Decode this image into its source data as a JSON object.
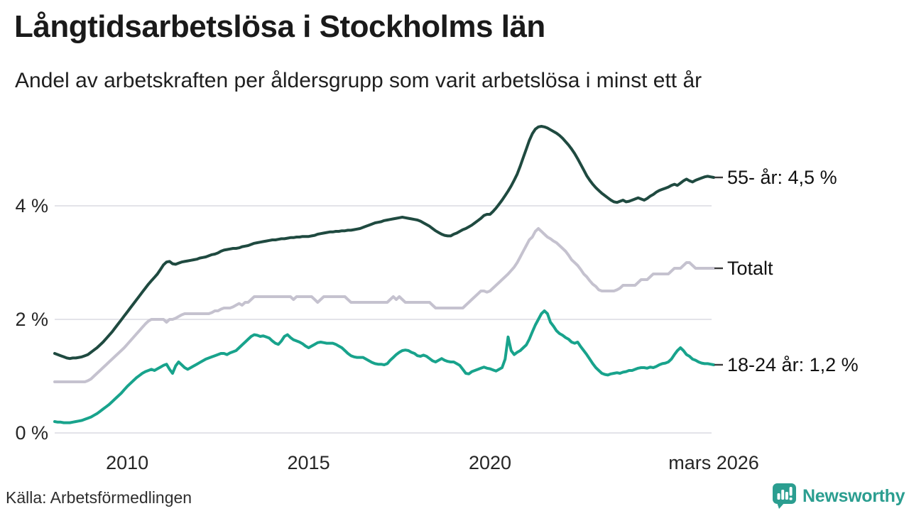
{
  "header": {
    "title": "Långtidsarbetslösa i Stockholms län",
    "subtitle": "Andel av arbetskraften per åldersgrupp som varit arbetslösa i minst ett år"
  },
  "footer": {
    "source": "Källa: Arbetsförmedlingen",
    "brand": "Newsworthy"
  },
  "colors": {
    "series_55": "#1f4a40",
    "series_total": "#c5c2cf",
    "series_young": "#18a38c",
    "gridline": "#e3e3e9",
    "connector": "#3c3c3c",
    "text": "#1a1a1a",
    "brand_teal": "#2b9e90"
  },
  "chart_data": {
    "type": "line",
    "title": "Långtidsarbetslösa i Stockholms län",
    "subtitle": "Andel av arbetskraften per åldersgrupp som varit arbetslösa i minst ett år",
    "source": "Källa: Arbetsförmedlingen",
    "x_unit": "month",
    "x_start": "2008-01",
    "x_end": "2026-03",
    "ylim": [
      0,
      5.6
    ],
    "grid": "horizontal",
    "legend_position": "right-end-labels",
    "yticks": [
      {
        "value": 0,
        "label": "0 %"
      },
      {
        "value": 2,
        "label": "2 %"
      },
      {
        "value": 4,
        "label": "4 %"
      }
    ],
    "xticks": [
      {
        "month_index": 24,
        "label": "2010"
      },
      {
        "month_index": 84,
        "label": "2015"
      },
      {
        "month_index": 144,
        "label": "2020"
      },
      {
        "month_index": 218,
        "label": "mars 2026"
      }
    ],
    "series": [
      {
        "name": "55- år",
        "end_label": "55- år: 4,5 %",
        "end_value": 4.5,
        "color": "#1f4a40",
        "values": [
          1.4,
          1.38,
          1.36,
          1.34,
          1.32,
          1.31,
          1.32,
          1.32,
          1.33,
          1.34,
          1.36,
          1.38,
          1.42,
          1.46,
          1.5,
          1.55,
          1.6,
          1.66,
          1.72,
          1.78,
          1.85,
          1.92,
          1.99,
          2.06,
          2.13,
          2.2,
          2.27,
          2.34,
          2.41,
          2.48,
          2.55,
          2.62,
          2.68,
          2.74,
          2.8,
          2.88,
          2.96,
          3.01,
          3.02,
          2.98,
          2.97,
          2.99,
          3.01,
          3.02,
          3.03,
          3.04,
          3.05,
          3.06,
          3.08,
          3.09,
          3.1,
          3.12,
          3.14,
          3.15,
          3.17,
          3.2,
          3.22,
          3.23,
          3.24,
          3.25,
          3.25,
          3.26,
          3.28,
          3.29,
          3.3,
          3.32,
          3.34,
          3.35,
          3.36,
          3.37,
          3.38,
          3.39,
          3.4,
          3.4,
          3.41,
          3.42,
          3.42,
          3.43,
          3.44,
          3.44,
          3.45,
          3.45,
          3.46,
          3.46,
          3.46,
          3.47,
          3.48,
          3.5,
          3.51,
          3.52,
          3.53,
          3.54,
          3.54,
          3.55,
          3.55,
          3.56,
          3.56,
          3.57,
          3.57,
          3.58,
          3.59,
          3.6,
          3.62,
          3.64,
          3.66,
          3.68,
          3.7,
          3.71,
          3.72,
          3.74,
          3.75,
          3.76,
          3.77,
          3.78,
          3.79,
          3.8,
          3.79,
          3.78,
          3.77,
          3.76,
          3.75,
          3.73,
          3.7,
          3.67,
          3.64,
          3.6,
          3.56,
          3.53,
          3.5,
          3.48,
          3.47,
          3.47,
          3.5,
          3.52,
          3.55,
          3.58,
          3.6,
          3.63,
          3.66,
          3.7,
          3.74,
          3.78,
          3.83,
          3.85,
          3.85,
          3.9,
          3.96,
          4.03,
          4.1,
          4.18,
          4.26,
          4.35,
          4.45,
          4.56,
          4.7,
          4.85,
          5.0,
          5.15,
          5.27,
          5.35,
          5.39,
          5.4,
          5.39,
          5.37,
          5.34,
          5.31,
          5.28,
          5.24,
          5.19,
          5.13,
          5.07,
          5.0,
          4.92,
          4.83,
          4.73,
          4.63,
          4.53,
          4.45,
          4.38,
          4.32,
          4.27,
          4.22,
          4.18,
          4.14,
          4.1,
          4.07,
          4.06,
          4.08,
          4.1,
          4.07,
          4.08,
          4.1,
          4.12,
          4.14,
          4.12,
          4.1,
          4.13,
          4.17,
          4.2,
          4.24,
          4.27,
          4.29,
          4.31,
          4.33,
          4.36,
          4.38,
          4.36,
          4.4,
          4.44,
          4.47,
          4.44,
          4.42,
          4.45,
          4.47,
          4.49,
          4.51,
          4.52,
          4.51,
          4.5
        ]
      },
      {
        "name": "Totalt",
        "end_label": "Totalt",
        "end_value": 2.9,
        "color": "#c5c2cf",
        "values": [
          0.9,
          0.9,
          0.9,
          0.9,
          0.9,
          0.9,
          0.9,
          0.9,
          0.9,
          0.9,
          0.9,
          0.92,
          0.95,
          1.0,
          1.05,
          1.1,
          1.15,
          1.2,
          1.25,
          1.3,
          1.35,
          1.4,
          1.45,
          1.5,
          1.56,
          1.62,
          1.68,
          1.74,
          1.8,
          1.86,
          1.92,
          1.97,
          2.0,
          2.0,
          2.0,
          2.0,
          2.0,
          1.95,
          2.0,
          2.0,
          2.02,
          2.05,
          2.08,
          2.1,
          2.1,
          2.1,
          2.1,
          2.1,
          2.1,
          2.1,
          2.1,
          2.1,
          2.12,
          2.15,
          2.15,
          2.18,
          2.2,
          2.2,
          2.2,
          2.22,
          2.25,
          2.28,
          2.25,
          2.3,
          2.3,
          2.35,
          2.4,
          2.4,
          2.4,
          2.4,
          2.4,
          2.4,
          2.4,
          2.4,
          2.4,
          2.4,
          2.4,
          2.4,
          2.4,
          2.35,
          2.4,
          2.4,
          2.4,
          2.4,
          2.4,
          2.4,
          2.35,
          2.3,
          2.35,
          2.4,
          2.4,
          2.4,
          2.4,
          2.4,
          2.4,
          2.4,
          2.4,
          2.35,
          2.3,
          2.3,
          2.3,
          2.3,
          2.3,
          2.3,
          2.3,
          2.3,
          2.3,
          2.3,
          2.3,
          2.3,
          2.3,
          2.35,
          2.4,
          2.35,
          2.4,
          2.35,
          2.3,
          2.3,
          2.3,
          2.3,
          2.3,
          2.3,
          2.3,
          2.3,
          2.3,
          2.25,
          2.2,
          2.2,
          2.2,
          2.2,
          2.2,
          2.2,
          2.2,
          2.2,
          2.2,
          2.2,
          2.25,
          2.3,
          2.35,
          2.4,
          2.45,
          2.5,
          2.5,
          2.48,
          2.5,
          2.55,
          2.6,
          2.65,
          2.7,
          2.75,
          2.8,
          2.86,
          2.92,
          3.0,
          3.1,
          3.2,
          3.3,
          3.4,
          3.45,
          3.55,
          3.6,
          3.55,
          3.5,
          3.45,
          3.42,
          3.38,
          3.35,
          3.3,
          3.25,
          3.2,
          3.13,
          3.05,
          3.0,
          2.95,
          2.88,
          2.8,
          2.75,
          2.68,
          2.62,
          2.58,
          2.52,
          2.5,
          2.5,
          2.5,
          2.5,
          2.5,
          2.52,
          2.55,
          2.6,
          2.6,
          2.6,
          2.6,
          2.6,
          2.65,
          2.7,
          2.7,
          2.7,
          2.75,
          2.8,
          2.8,
          2.8,
          2.8,
          2.8,
          2.8,
          2.85,
          2.9,
          2.9,
          2.9,
          2.95,
          3.0,
          3.0,
          2.95,
          2.9,
          2.9,
          2.9,
          2.9,
          2.9,
          2.9,
          2.9
        ]
      },
      {
        "name": "18-24 år",
        "end_label": "18-24 år: 1,2 %",
        "end_value": 1.2,
        "color": "#18a38c",
        "values": [
          0.2,
          0.19,
          0.19,
          0.18,
          0.18,
          0.18,
          0.19,
          0.2,
          0.21,
          0.22,
          0.24,
          0.26,
          0.28,
          0.31,
          0.34,
          0.38,
          0.42,
          0.46,
          0.5,
          0.55,
          0.6,
          0.65,
          0.7,
          0.76,
          0.82,
          0.87,
          0.92,
          0.97,
          1.01,
          1.05,
          1.08,
          1.1,
          1.12,
          1.1,
          1.13,
          1.16,
          1.19,
          1.21,
          1.12,
          1.05,
          1.18,
          1.25,
          1.2,
          1.15,
          1.12,
          1.15,
          1.18,
          1.21,
          1.24,
          1.27,
          1.3,
          1.32,
          1.34,
          1.36,
          1.38,
          1.4,
          1.4,
          1.38,
          1.41,
          1.43,
          1.45,
          1.5,
          1.55,
          1.6,
          1.65,
          1.7,
          1.73,
          1.72,
          1.7,
          1.71,
          1.69,
          1.67,
          1.62,
          1.58,
          1.56,
          1.62,
          1.7,
          1.73,
          1.68,
          1.64,
          1.62,
          1.6,
          1.57,
          1.53,
          1.5,
          1.53,
          1.56,
          1.59,
          1.6,
          1.59,
          1.58,
          1.58,
          1.58,
          1.56,
          1.53,
          1.5,
          1.45,
          1.4,
          1.36,
          1.34,
          1.33,
          1.33,
          1.33,
          1.3,
          1.27,
          1.24,
          1.22,
          1.21,
          1.21,
          1.2,
          1.22,
          1.28,
          1.33,
          1.38,
          1.42,
          1.45,
          1.46,
          1.45,
          1.42,
          1.4,
          1.36,
          1.35,
          1.37,
          1.35,
          1.31,
          1.27,
          1.25,
          1.28,
          1.31,
          1.28,
          1.26,
          1.25,
          1.25,
          1.22,
          1.19,
          1.12,
          1.05,
          1.04,
          1.08,
          1.1,
          1.12,
          1.14,
          1.16,
          1.14,
          1.13,
          1.11,
          1.09,
          1.12,
          1.15,
          1.3,
          1.69,
          1.45,
          1.38,
          1.42,
          1.45,
          1.5,
          1.55,
          1.65,
          1.78,
          1.9,
          2.0,
          2.1,
          2.15,
          2.1,
          1.95,
          1.88,
          1.8,
          1.75,
          1.72,
          1.68,
          1.65,
          1.6,
          1.58,
          1.6,
          1.52,
          1.45,
          1.38,
          1.3,
          1.22,
          1.15,
          1.1,
          1.05,
          1.03,
          1.02,
          1.04,
          1.05,
          1.06,
          1.05,
          1.07,
          1.08,
          1.1,
          1.1,
          1.12,
          1.14,
          1.15,
          1.15,
          1.14,
          1.16,
          1.15,
          1.17,
          1.2,
          1.22,
          1.23,
          1.25,
          1.3,
          1.38,
          1.45,
          1.5,
          1.45,
          1.38,
          1.35,
          1.3,
          1.28,
          1.25,
          1.23,
          1.22,
          1.22,
          1.21,
          1.2
        ]
      }
    ]
  }
}
